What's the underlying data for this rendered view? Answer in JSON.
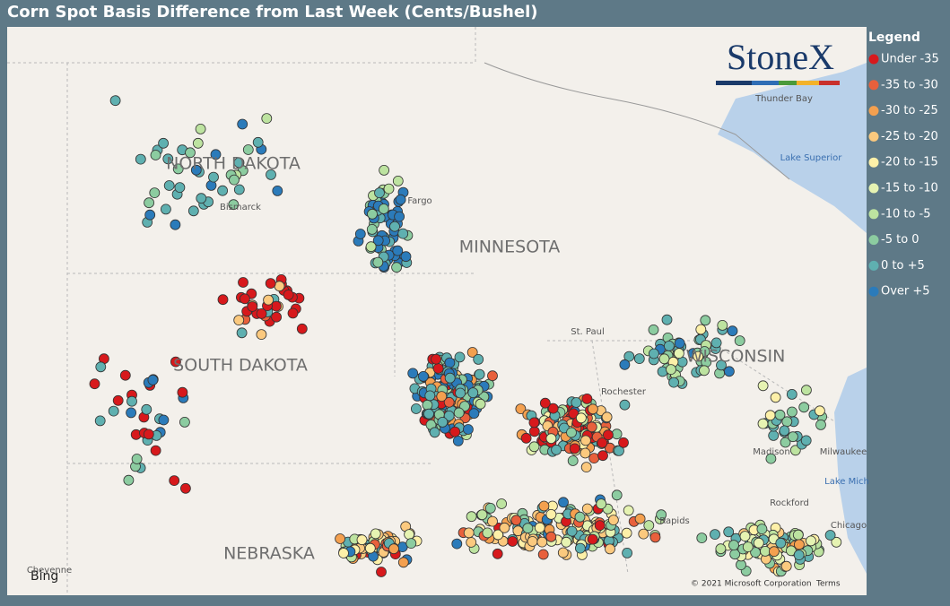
{
  "header": {
    "title": "Corn Spot Basis Difference from Last Week (Cents/Bushel)"
  },
  "legend": {
    "title": "Legend",
    "items": [
      {
        "label": "Under -35",
        "color": "#d7191c"
      },
      {
        "label": "-35 to -30",
        "color": "#e8603c"
      },
      {
        "label": "-30 to -25",
        "color": "#f4a04f"
      },
      {
        "label": "-25 to -20",
        "color": "#fbc97e"
      },
      {
        "label": "-20 to -15",
        "color": "#fdf0a8"
      },
      {
        "label": "-15 to -10",
        "color": "#e6f3b2"
      },
      {
        "label": "-10 to -5",
        "color": "#bde3a0"
      },
      {
        "label": "-5 to 0",
        "color": "#8ccca0"
      },
      {
        "label": "0 to +5",
        "color": "#5fb0b0"
      },
      {
        "label": "Over +5",
        "color": "#2b7bba"
      }
    ]
  },
  "map": {
    "states": [
      "NORTH DAKOTA",
      "SOUTH DAKOTA",
      "MINNESOTA",
      "WISCONSIN",
      "NEBRASKA"
    ],
    "places": [
      "Bismarck",
      "Fargo",
      "Thunder Bay",
      "Lake Superior",
      "Milwaukee",
      "Lake Mich",
      "Chicago",
      "Rapids",
      "Rockford",
      "Madison",
      "St. Paul",
      "Rochester",
      "Cheyenne"
    ],
    "logo": "StoneX",
    "attribution": "Bing",
    "copyright": "© 2021 Microsoft Corporation",
    "terms": "Terms"
  }
}
